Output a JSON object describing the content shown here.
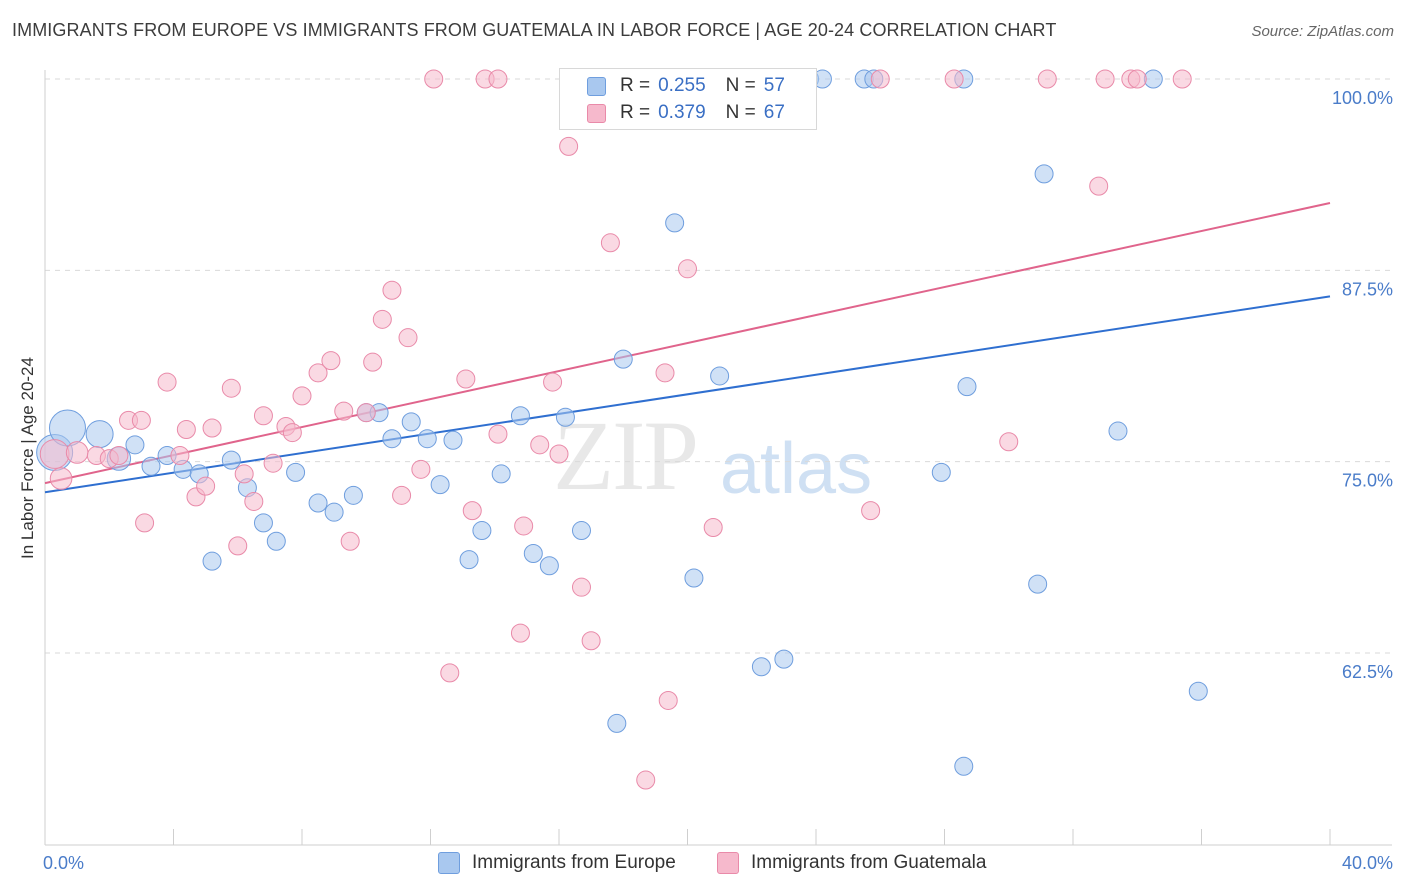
{
  "header": {
    "title": "IMMIGRANTS FROM EUROPE VS IMMIGRANTS FROM GUATEMALA IN LABOR FORCE | AGE 20-24 CORRELATION CHART",
    "source": "Source: ZipAtlas.com"
  },
  "watermark": {
    "zip": "ZIP",
    "atlas": "atlas"
  },
  "legend": {
    "europe": {
      "r_label": "R =",
      "r_value": "0.255",
      "n_label": "N =",
      "n_value": "57"
    },
    "guatemala": {
      "r_label": "R =",
      "r_value": "0.379",
      "n_label": "N =",
      "n_value": "67"
    }
  },
  "bottom_legend": {
    "europe": "Immigrants from Europe",
    "guatemala": "Immigrants from Guatemala"
  },
  "colors": {
    "europe_fill": "#a9c8ef",
    "europe_stroke": "#6f9ede",
    "europe_line": "#2f6fd0",
    "guatemala_fill": "#f6b9cc",
    "guatemala_stroke": "#e98aa9",
    "guatemala_line": "#e0648c",
    "tick_text": "#4a7cc9",
    "grid": "#d9d9d9"
  },
  "chart_data": {
    "type": "scatter",
    "ylabel": "In Labor Force | Age 20-24",
    "xlabel": "",
    "xlim": [
      0,
      40
    ],
    "ylim": [
      52,
      102
    ],
    "x_tick_labels": [
      {
        "value": 0,
        "label": "0.0%"
      },
      {
        "value": 40,
        "label": "40.0%"
      }
    ],
    "y_tick_labels": [
      {
        "value": 62.5,
        "label": "62.5%"
      },
      {
        "value": 75.0,
        "label": "75.0%"
      },
      {
        "value": 87.5,
        "label": "87.5%"
      },
      {
        "value": 100.0,
        "label": "100.0%"
      }
    ],
    "grid": true,
    "legend_position": "top-center",
    "series": [
      {
        "name": "Immigrants from Europe",
        "color": "#a9c8ef",
        "trend": {
          "x": [
            0,
            40
          ],
          "y": [
            73.0,
            85.8
          ]
        },
        "points": [
          {
            "x": 0.3,
            "y": 75.6,
            "s": 2
          },
          {
            "x": 0.7,
            "y": 77.2,
            "s": 2
          },
          {
            "x": 1.7,
            "y": 76.8,
            "s": 1.5
          },
          {
            "x": 2.3,
            "y": 75.2,
            "s": 1.3
          },
          {
            "x": 2.8,
            "y": 76.1,
            "s": 1
          },
          {
            "x": 3.3,
            "y": 74.7,
            "s": 1
          },
          {
            "x": 3.8,
            "y": 75.4,
            "s": 1
          },
          {
            "x": 4.3,
            "y": 74.5,
            "s": 1
          },
          {
            "x": 4.8,
            "y": 74.2,
            "s": 1
          },
          {
            "x": 5.2,
            "y": 68.5,
            "s": 1
          },
          {
            "x": 5.8,
            "y": 75.1,
            "s": 1
          },
          {
            "x": 6.3,
            "y": 73.3,
            "s": 1
          },
          {
            "x": 6.8,
            "y": 71.0,
            "s": 1
          },
          {
            "x": 7.2,
            "y": 69.8,
            "s": 1
          },
          {
            "x": 7.8,
            "y": 74.3,
            "s": 1
          },
          {
            "x": 8.5,
            "y": 72.3,
            "s": 1
          },
          {
            "x": 9.0,
            "y": 71.7,
            "s": 1
          },
          {
            "x": 9.6,
            "y": 72.8,
            "s": 1
          },
          {
            "x": 10.0,
            "y": 78.2,
            "s": 1
          },
          {
            "x": 10.4,
            "y": 78.2,
            "s": 1
          },
          {
            "x": 10.8,
            "y": 76.5,
            "s": 1
          },
          {
            "x": 11.4,
            "y": 77.6,
            "s": 1
          },
          {
            "x": 11.9,
            "y": 76.5,
            "s": 1
          },
          {
            "x": 12.3,
            "y": 73.5,
            "s": 1
          },
          {
            "x": 12.7,
            "y": 76.4,
            "s": 1
          },
          {
            "x": 13.2,
            "y": 68.6,
            "s": 1
          },
          {
            "x": 13.6,
            "y": 70.5,
            "s": 1
          },
          {
            "x": 14.2,
            "y": 74.2,
            "s": 1
          },
          {
            "x": 14.8,
            "y": 78.0,
            "s": 1
          },
          {
            "x": 15.2,
            "y": 69.0,
            "s": 1
          },
          {
            "x": 15.7,
            "y": 68.2,
            "s": 1
          },
          {
            "x": 16.2,
            "y": 77.9,
            "s": 1
          },
          {
            "x": 16.7,
            "y": 70.5,
            "s": 1
          },
          {
            "x": 17.8,
            "y": 57.9,
            "s": 1
          },
          {
            "x": 18.0,
            "y": 81.7,
            "s": 1
          },
          {
            "x": 19.0,
            "y": 100.0,
            "s": 1
          },
          {
            "x": 19.6,
            "y": 90.6,
            "s": 1
          },
          {
            "x": 20.2,
            "y": 67.4,
            "s": 1
          },
          {
            "x": 21.0,
            "y": 80.6,
            "s": 1
          },
          {
            "x": 22.3,
            "y": 61.6,
            "s": 1
          },
          {
            "x": 22.4,
            "y": 100.0,
            "s": 1
          },
          {
            "x": 22.8,
            "y": 100.0,
            "s": 1
          },
          {
            "x": 23.0,
            "y": 62.1,
            "s": 1
          },
          {
            "x": 23.8,
            "y": 100.0,
            "s": 1
          },
          {
            "x": 24.2,
            "y": 100.0,
            "s": 1
          },
          {
            "x": 25.5,
            "y": 100.0,
            "s": 1
          },
          {
            "x": 25.8,
            "y": 100.0,
            "s": 1
          },
          {
            "x": 27.9,
            "y": 74.3,
            "s": 1
          },
          {
            "x": 28.6,
            "y": 55.1,
            "s": 1
          },
          {
            "x": 28.6,
            "y": 100.0,
            "s": 1
          },
          {
            "x": 28.7,
            "y": 79.9,
            "s": 1
          },
          {
            "x": 30.9,
            "y": 67.0,
            "s": 1
          },
          {
            "x": 31.1,
            "y": 93.8,
            "s": 1
          },
          {
            "x": 33.4,
            "y": 77.0,
            "s": 1
          },
          {
            "x": 34.5,
            "y": 100.0,
            "s": 1
          },
          {
            "x": 35.9,
            "y": 60.0,
            "s": 1
          },
          {
            "x": 17.5,
            "y": 100.0,
            "s": 1
          }
        ]
      },
      {
        "name": "Immigrants from Guatemala",
        "color": "#f6b9cc",
        "trend": {
          "x": [
            0,
            40
          ],
          "y": [
            73.6,
            91.9
          ]
        },
        "points": [
          {
            "x": 0.3,
            "y": 75.5,
            "s": 1.6
          },
          {
            "x": 0.5,
            "y": 73.9,
            "s": 1.2
          },
          {
            "x": 1.0,
            "y": 75.6,
            "s": 1.2
          },
          {
            "x": 1.6,
            "y": 75.4,
            "s": 1
          },
          {
            "x": 2.0,
            "y": 75.2,
            "s": 1
          },
          {
            "x": 2.3,
            "y": 75.4,
            "s": 1
          },
          {
            "x": 2.6,
            "y": 77.7,
            "s": 1
          },
          {
            "x": 3.0,
            "y": 77.7,
            "s": 1
          },
          {
            "x": 3.1,
            "y": 71.0,
            "s": 1
          },
          {
            "x": 3.8,
            "y": 80.2,
            "s": 1
          },
          {
            "x": 4.2,
            "y": 75.4,
            "s": 1
          },
          {
            "x": 4.4,
            "y": 77.1,
            "s": 1
          },
          {
            "x": 4.7,
            "y": 72.7,
            "s": 1
          },
          {
            "x": 5.0,
            "y": 73.4,
            "s": 1
          },
          {
            "x": 5.2,
            "y": 77.2,
            "s": 1
          },
          {
            "x": 5.8,
            "y": 79.8,
            "s": 1
          },
          {
            "x": 6.0,
            "y": 69.5,
            "s": 1
          },
          {
            "x": 6.2,
            "y": 74.2,
            "s": 1
          },
          {
            "x": 6.5,
            "y": 72.4,
            "s": 1
          },
          {
            "x": 6.8,
            "y": 78.0,
            "s": 1
          },
          {
            "x": 7.1,
            "y": 74.9,
            "s": 1
          },
          {
            "x": 7.5,
            "y": 77.3,
            "s": 1
          },
          {
            "x": 7.7,
            "y": 76.9,
            "s": 1
          },
          {
            "x": 8.0,
            "y": 79.3,
            "s": 1
          },
          {
            "x": 8.5,
            "y": 80.8,
            "s": 1
          },
          {
            "x": 8.9,
            "y": 81.6,
            "s": 1
          },
          {
            "x": 9.3,
            "y": 78.3,
            "s": 1
          },
          {
            "x": 9.5,
            "y": 69.8,
            "s": 1
          },
          {
            "x": 10.0,
            "y": 78.2,
            "s": 1
          },
          {
            "x": 10.2,
            "y": 81.5,
            "s": 1
          },
          {
            "x": 10.5,
            "y": 84.3,
            "s": 1
          },
          {
            "x": 10.8,
            "y": 86.2,
            "s": 1
          },
          {
            "x": 11.1,
            "y": 72.8,
            "s": 1
          },
          {
            "x": 11.3,
            "y": 83.1,
            "s": 1
          },
          {
            "x": 11.7,
            "y": 74.5,
            "s": 1
          },
          {
            "x": 12.1,
            "y": 100.0,
            "s": 1
          },
          {
            "x": 12.6,
            "y": 61.2,
            "s": 1
          },
          {
            "x": 13.1,
            "y": 80.4,
            "s": 1
          },
          {
            "x": 13.3,
            "y": 71.8,
            "s": 1
          },
          {
            "x": 13.7,
            "y": 100.0,
            "s": 1
          },
          {
            "x": 14.1,
            "y": 100.0,
            "s": 1
          },
          {
            "x": 14.1,
            "y": 76.8,
            "s": 1
          },
          {
            "x": 14.8,
            "y": 63.8,
            "s": 1
          },
          {
            "x": 14.9,
            "y": 70.8,
            "s": 1
          },
          {
            "x": 15.4,
            "y": 76.1,
            "s": 1
          },
          {
            "x": 15.8,
            "y": 80.2,
            "s": 1
          },
          {
            "x": 16.0,
            "y": 75.5,
            "s": 1
          },
          {
            "x": 16.3,
            "y": 95.6,
            "s": 1
          },
          {
            "x": 16.7,
            "y": 66.8,
            "s": 1
          },
          {
            "x": 17.0,
            "y": 63.3,
            "s": 1
          },
          {
            "x": 17.6,
            "y": 89.3,
            "s": 1
          },
          {
            "x": 18.7,
            "y": 54.2,
            "s": 1
          },
          {
            "x": 19.2,
            "y": 100.0,
            "s": 1
          },
          {
            "x": 19.3,
            "y": 80.8,
            "s": 1
          },
          {
            "x": 19.4,
            "y": 59.4,
            "s": 1
          },
          {
            "x": 20.0,
            "y": 87.6,
            "s": 1
          },
          {
            "x": 20.8,
            "y": 70.7,
            "s": 1
          },
          {
            "x": 25.7,
            "y": 71.8,
            "s": 1
          },
          {
            "x": 26.0,
            "y": 100.0,
            "s": 1
          },
          {
            "x": 28.3,
            "y": 100.0,
            "s": 1
          },
          {
            "x": 30.0,
            "y": 76.3,
            "s": 1
          },
          {
            "x": 31.2,
            "y": 100.0,
            "s": 1
          },
          {
            "x": 32.8,
            "y": 93.0,
            "s": 1
          },
          {
            "x": 33.0,
            "y": 100.0,
            "s": 1
          },
          {
            "x": 33.8,
            "y": 100.0,
            "s": 1
          },
          {
            "x": 34.0,
            "y": 100.0,
            "s": 1
          },
          {
            "x": 35.4,
            "y": 100.0,
            "s": 1
          }
        ]
      }
    ]
  }
}
